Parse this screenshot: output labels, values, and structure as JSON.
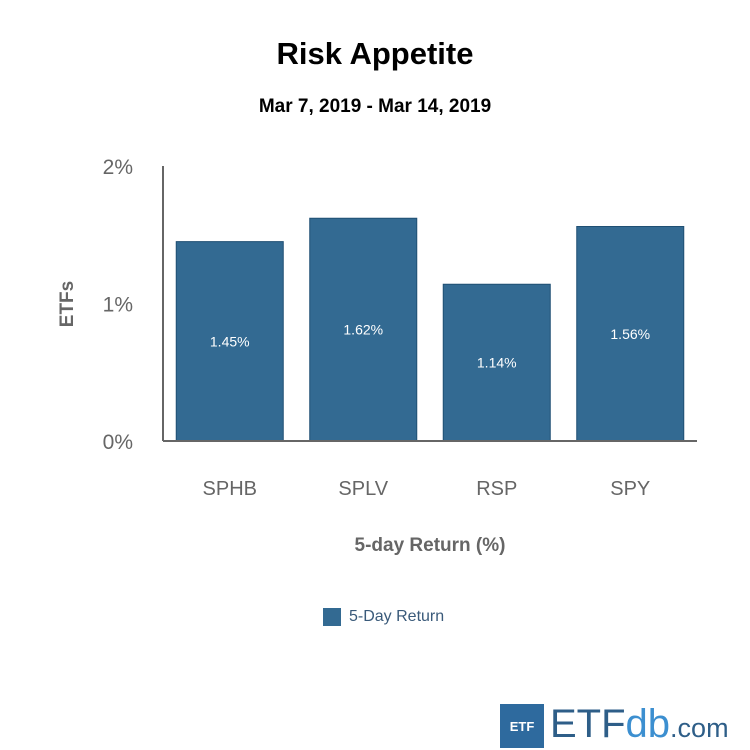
{
  "chart_data": {
    "type": "bar",
    "title": "Risk Appetite",
    "subtitle": "Mar 7, 2019 - Mar 14, 2019",
    "xlabel": "5-day Return (%)",
    "ylabel": "ETFs",
    "categories": [
      "SPHB",
      "SPLV",
      "RSP",
      "SPY"
    ],
    "series": [
      {
        "name": "5-Day Return",
        "values": [
          1.45,
          1.62,
          1.14,
          1.56
        ],
        "labels": [
          "1.45%",
          "1.62%",
          "1.14%",
          "1.56%"
        ],
        "color": "#336a92"
      }
    ],
    "ylim": [
      0,
      2
    ],
    "yticks": [
      {
        "value": 0,
        "label": "0%"
      },
      {
        "value": 1,
        "label": "1%"
      },
      {
        "value": 2,
        "label": "2%"
      }
    ],
    "grid": false,
    "legend_position": "bottom-center"
  },
  "logo": {
    "box_text": "ETF",
    "main": "ETF",
    "accent": "db",
    "suffix": ".com"
  }
}
